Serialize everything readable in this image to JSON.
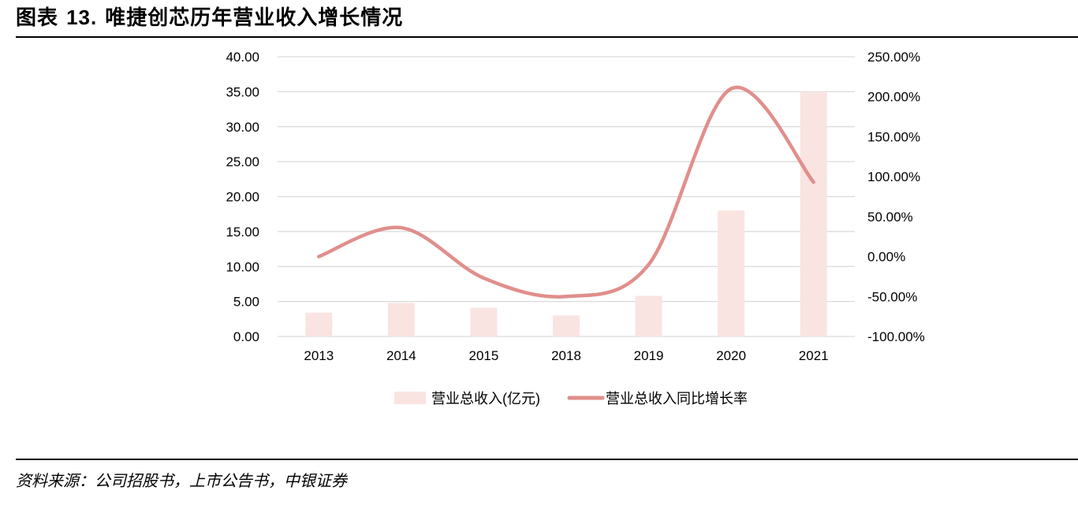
{
  "header": {
    "label": "图表",
    "number": "13.",
    "title": "唯捷创芯历年营业收入增长情况"
  },
  "source": "资料来源：公司招股书，上市公告书，中银证券",
  "chart_data": {
    "type": "bar+line",
    "categories": [
      "2013",
      "2014",
      "2015",
      "2018",
      "2019",
      "2020",
      "2021"
    ],
    "series": [
      {
        "name": "营业总收入(亿元)",
        "type": "bar",
        "axis": "left",
        "color": "#f9e4e2",
        "values": [
          3.4,
          4.8,
          4.1,
          3.0,
          5.8,
          18.0,
          35.0
        ]
      },
      {
        "name": "营业总收入同比增长率",
        "type": "line",
        "axis": "right",
        "color": "#e08f8c",
        "values": [
          0.0,
          36.0,
          -27.0,
          -50.0,
          -10.0,
          210.0,
          93.0
        ]
      }
    ],
    "left_axis": {
      "min": 0,
      "max": 40,
      "step": 5,
      "tick_labels": [
        "0.00",
        "5.00",
        "10.00",
        "15.00",
        "20.00",
        "25.00",
        "30.00",
        "35.00",
        "40.00"
      ]
    },
    "right_axis": {
      "min": -100,
      "max": 250,
      "step": 50,
      "tick_labels": [
        "-100.00%",
        "-50.00%",
        "0.00%",
        "50.00%",
        "100.00%",
        "150.00%",
        "200.00%",
        "250.00%"
      ]
    },
    "gridlines": true,
    "legend_position": "bottom-center"
  }
}
